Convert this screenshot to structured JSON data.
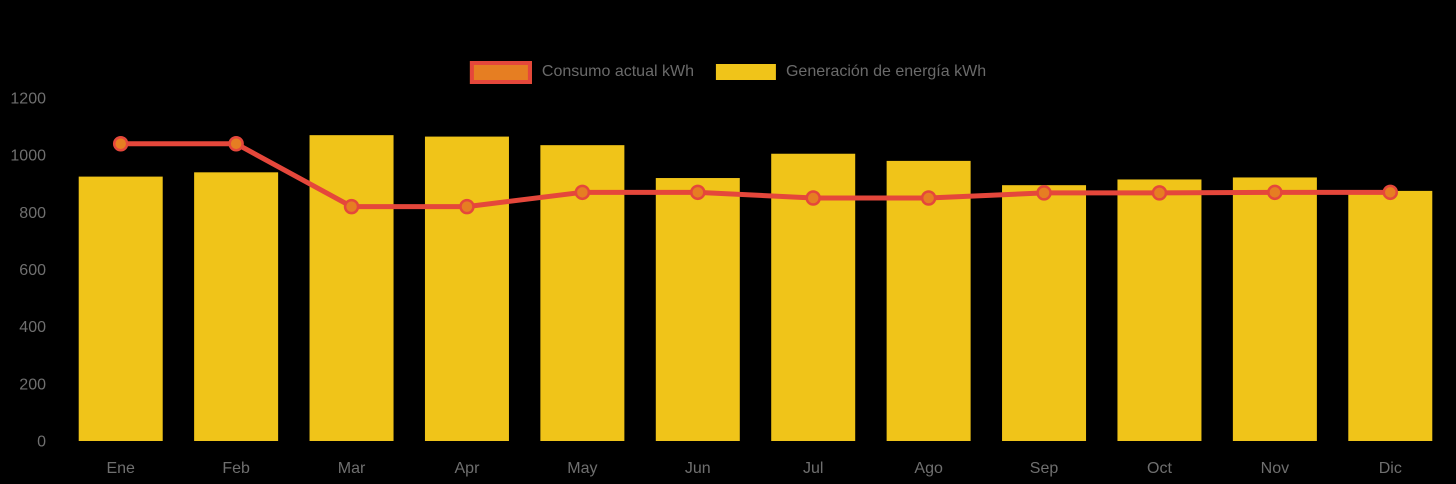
{
  "chart_data": {
    "type": "combo-bar-line",
    "title": "",
    "categories": [
      "Ene",
      "Feb",
      "Mar",
      "Apr",
      "May",
      "Jun",
      "Jul",
      "Ago",
      "Sep",
      "Oct",
      "Nov",
      "Dic"
    ],
    "series": [
      {
        "name": "Consumo actual kWh",
        "type": "line",
        "values": [
          1040,
          1040,
          820,
          820,
          870,
          870,
          850,
          850,
          868,
          868,
          870,
          870
        ]
      },
      {
        "name": "Generación de energía kWh",
        "type": "bar",
        "values": [
          925,
          940,
          1070,
          1065,
          1035,
          920,
          1005,
          980,
          895,
          915,
          922,
          875
        ]
      }
    ],
    "xlabel": "",
    "ylabel": "",
    "ylim": [
      0,
      1200
    ],
    "yticks": [
      0,
      200,
      400,
      600,
      800,
      1000,
      1200
    ],
    "grid": false,
    "legend_position": "top-center",
    "colors": {
      "bar": "#f0c419",
      "line": "#e5473b",
      "point_fill": "#e67e22",
      "axis_text": "#6f6f6f",
      "legend_text": "#6a6a6a",
      "background": "#000000"
    }
  }
}
